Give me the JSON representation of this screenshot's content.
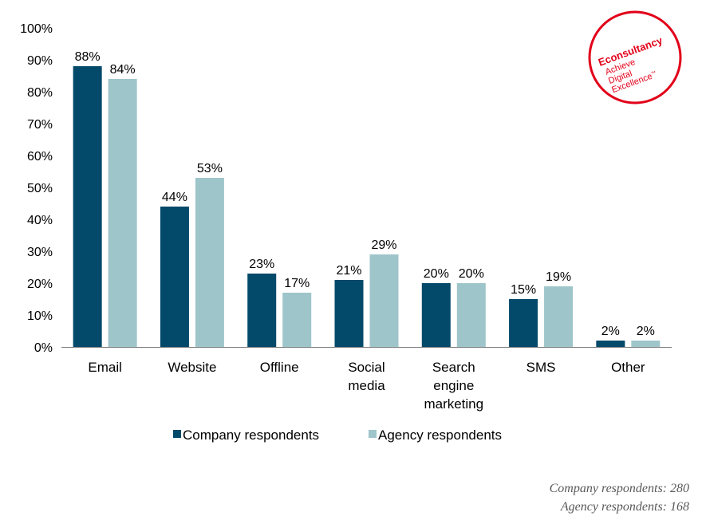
{
  "chart_data": {
    "type": "bar",
    "categories": [
      [
        "Email"
      ],
      [
        "Website"
      ],
      [
        "Offline"
      ],
      [
        "Social",
        "media"
      ],
      [
        "Search",
        "engine",
        "marketing"
      ],
      [
        "SMS"
      ],
      [
        "Other"
      ]
    ],
    "series": [
      {
        "name": "Company respondents",
        "color": "#02496a",
        "values": [
          88,
          44,
          23,
          21,
          20,
          15,
          2
        ]
      },
      {
        "name": "Agency respondents",
        "color": "#9ec5ca",
        "values": [
          84,
          53,
          17,
          29,
          20,
          19,
          2
        ]
      }
    ],
    "y_ticks": [
      "0%",
      "10%",
      "20%",
      "30%",
      "40%",
      "50%",
      "60%",
      "70%",
      "80%",
      "90%",
      "100%"
    ],
    "ylim": [
      0,
      100
    ],
    "value_suffix": "%",
    "grid": false,
    "legend_position": "bottom"
  },
  "logo": {
    "brand": "Econsultancy",
    "tagline": [
      "Achieve",
      "Digital",
      "Excellence"
    ],
    "trademark": "™",
    "color": "#e2001a"
  },
  "footnotes": {
    "company": "Company respondents: 280",
    "agency": "Agency respondents: 168"
  }
}
